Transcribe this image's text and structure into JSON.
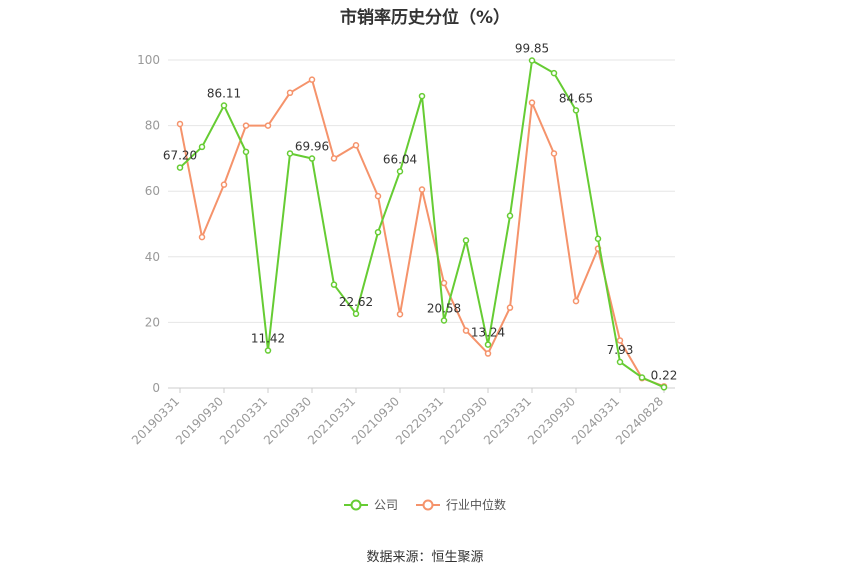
{
  "chart_data": {
    "type": "line",
    "title": "市销率历史分位（%）",
    "x": [
      "20190331",
      "20190630",
      "20190930",
      "20191231",
      "20200331",
      "20200630",
      "20200930",
      "20201231",
      "20210331",
      "20210630",
      "20210930",
      "20211231",
      "20220331",
      "20220630",
      "20220930",
      "20221231",
      "20230331",
      "20230630",
      "20230930",
      "20231231",
      "20240331",
      "20240630",
      "20240828"
    ],
    "x_tick_labels": [
      "20190331",
      "20190930",
      "20200331",
      "20200930",
      "20210331",
      "20210930",
      "20220331",
      "20220930",
      "20230331",
      "20230930",
      "20240331",
      "20240828"
    ],
    "ylim": [
      0,
      100
    ],
    "y_ticks": [
      0,
      20,
      40,
      60,
      80,
      100
    ],
    "grid": true,
    "series": [
      {
        "name": "公司",
        "color": "#66cc33",
        "values": [
          67.2,
          73.5,
          86.11,
          72.0,
          11.42,
          71.5,
          69.96,
          31.5,
          22.62,
          47.5,
          66.04,
          89.0,
          20.58,
          45.0,
          13.24,
          52.5,
          99.85,
          96.0,
          84.65,
          45.5,
          7.93,
          3.2,
          0.22
        ],
        "labels": {
          "0": "67.20",
          "2": "86.11",
          "4": "11.42",
          "6": "69.96",
          "8": "22.62",
          "10": "66.04",
          "12": "20.58",
          "14": "13.24",
          "16": "99.85",
          "18": "84.65",
          "20": "7.93",
          "22": "0.22"
        }
      },
      {
        "name": "行业中位数",
        "color": "#f5936b",
        "values": [
          80.5,
          46.0,
          62.0,
          80.0,
          80.0,
          90.0,
          94.0,
          70.0,
          74.0,
          58.5,
          22.5,
          60.5,
          32.0,
          17.5,
          10.5,
          24.5,
          87.0,
          71.5,
          26.5,
          42.5,
          14.5,
          3.0,
          0.5
        ]
      }
    ],
    "legend": {
      "position": "bottom",
      "items": [
        "公司",
        "行业中位数"
      ]
    },
    "source": "数据来源：恒生聚源"
  }
}
